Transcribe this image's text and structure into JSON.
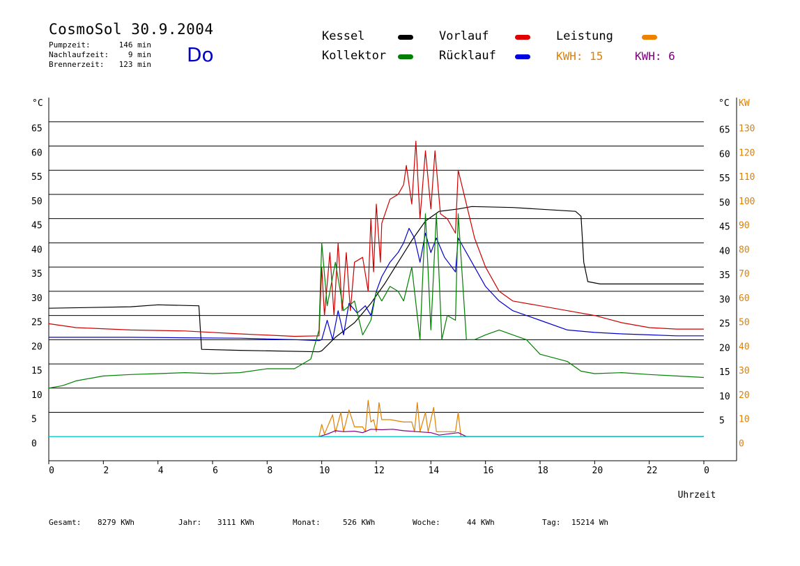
{
  "header": {
    "title": "CosmoSol 30.9.2004",
    "weekday": "Do",
    "stats": [
      {
        "label": "Pumpzeit:",
        "value": "146 min"
      },
      {
        "label": "Nachlaufzeit:",
        "value": "9 min"
      },
      {
        "label": "Brennerzeit:",
        "value": "123 min"
      }
    ]
  },
  "legend": {
    "items": [
      {
        "label": "Kessel",
        "color": "#000000"
      },
      {
        "label": "Vorlauf",
        "color": "#e00000"
      },
      {
        "label": "Leistung",
        "color": "#f08000"
      },
      {
        "label": "Kollektor",
        "color": "#008000"
      },
      {
        "label": "Rücklauf",
        "color": "#0000e0"
      }
    ],
    "kwh": [
      {
        "label": "KWH: 15",
        "color": "#e08000"
      },
      {
        "label": "KWH: 6",
        "color": "#800080"
      }
    ]
  },
  "footer": [
    {
      "label": "Gesamt:",
      "value": "8279 KWh"
    },
    {
      "label": "Jahr:",
      "value": "3111 KWh"
    },
    {
      "label": "Monat:",
      "value": "526 KWh"
    },
    {
      "label": "Woche:",
      "value": "44 KWh"
    },
    {
      "label": "Tag:",
      "value": "15214 Wh"
    }
  ],
  "chart_data": {
    "type": "line",
    "xlabel": "Uhrzeit",
    "xlim": [
      0,
      24
    ],
    "x_ticks": [
      "0",
      "2",
      "4",
      "6",
      "8",
      "10",
      "12",
      "14",
      "16",
      "18",
      "20",
      "22",
      "0"
    ],
    "ylim": [
      -5,
      70
    ],
    "y_left_unit": "°C",
    "y_left_ticks": [
      "0",
      "5",
      "10",
      "15",
      "20",
      "25",
      "30",
      "35",
      "40",
      "45",
      "50",
      "55",
      "60",
      "65"
    ],
    "y_right_unit": "°C",
    "y_right_ticks": [
      "5",
      "10",
      "15",
      "20",
      "25",
      "30",
      "35",
      "40",
      "45",
      "50",
      "55",
      "60",
      "65"
    ],
    "y_right2_unit": "KW",
    "y_right2_ticks": [
      "0",
      "10",
      "20",
      "30",
      "40",
      "50",
      "60",
      "70",
      "80",
      "90",
      "100",
      "110",
      "120",
      "130"
    ],
    "grid": true,
    "series": [
      {
        "name": "Kessel",
        "color": "#000000",
        "points": [
          [
            0,
            26.5
          ],
          [
            3,
            26.8
          ],
          [
            4,
            27.2
          ],
          [
            5.5,
            27.0
          ],
          [
            5.6,
            18.0
          ],
          [
            7,
            17.8
          ],
          [
            9.9,
            17.5
          ],
          [
            10,
            17.7
          ],
          [
            10.5,
            20.5
          ],
          [
            11.2,
            23.5
          ],
          [
            11.8,
            27.5
          ],
          [
            12.3,
            31.5
          ],
          [
            12.8,
            36.0
          ],
          [
            13.3,
            40.5
          ],
          [
            13.8,
            44.5
          ],
          [
            14.3,
            46.5
          ],
          [
            15,
            47
          ],
          [
            15.5,
            47.5
          ],
          [
            17,
            47.3
          ],
          [
            19.3,
            46.5
          ],
          [
            19.5,
            45.5
          ],
          [
            19.6,
            36
          ],
          [
            19.75,
            32
          ],
          [
            20.2,
            31.5
          ],
          [
            24,
            31.5
          ]
        ]
      },
      {
        "name": "Vorlauf",
        "color": "#cc0000",
        "points": [
          [
            0,
            23.3
          ],
          [
            1,
            22.5
          ],
          [
            3,
            22.0
          ],
          [
            5,
            21.8
          ],
          [
            7,
            21.2
          ],
          [
            9,
            20.7
          ],
          [
            9.9,
            20.8
          ],
          [
            10,
            35
          ],
          [
            10.1,
            25
          ],
          [
            10.3,
            38
          ],
          [
            10.45,
            25
          ],
          [
            10.6,
            40
          ],
          [
            10.75,
            26
          ],
          [
            10.9,
            38
          ],
          [
            11.05,
            26
          ],
          [
            11.2,
            36
          ],
          [
            11.5,
            37
          ],
          [
            11.7,
            30
          ],
          [
            11.8,
            45
          ],
          [
            11.9,
            34
          ],
          [
            12.0,
            48
          ],
          [
            12.15,
            36
          ],
          [
            12.2,
            44
          ],
          [
            12.5,
            49
          ],
          [
            12.8,
            50
          ],
          [
            13.0,
            52
          ],
          [
            13.1,
            56
          ],
          [
            13.3,
            48
          ],
          [
            13.45,
            61
          ],
          [
            13.6,
            45
          ],
          [
            13.8,
            59
          ],
          [
            14.0,
            47
          ],
          [
            14.15,
            59
          ],
          [
            14.35,
            46
          ],
          [
            14.6,
            45
          ],
          [
            14.9,
            42
          ],
          [
            15.0,
            55
          ],
          [
            15.3,
            48
          ],
          [
            15.6,
            41
          ],
          [
            16,
            35
          ],
          [
            16.5,
            30
          ],
          [
            17,
            28
          ],
          [
            18,
            27
          ],
          [
            19,
            26
          ],
          [
            20,
            25
          ],
          [
            21,
            23.5
          ],
          [
            22,
            22.5
          ],
          [
            23,
            22.2
          ],
          [
            24,
            22.2
          ]
        ]
      },
      {
        "name": "Rücklauf",
        "color": "#0000cc",
        "points": [
          [
            0,
            20.5
          ],
          [
            1,
            20.5
          ],
          [
            3,
            20.5
          ],
          [
            5,
            20.4
          ],
          [
            7,
            20.3
          ],
          [
            9,
            20.0
          ],
          [
            9.9,
            19.8
          ],
          [
            10,
            20.0
          ],
          [
            10.2,
            24
          ],
          [
            10.4,
            20
          ],
          [
            10.6,
            26
          ],
          [
            10.8,
            21
          ],
          [
            11.0,
            27.5
          ],
          [
            11.3,
            25.5
          ],
          [
            11.6,
            27
          ],
          [
            11.8,
            25
          ],
          [
            12.0,
            30
          ],
          [
            12.2,
            33
          ],
          [
            12.5,
            36
          ],
          [
            12.8,
            38
          ],
          [
            13.0,
            40
          ],
          [
            13.2,
            43
          ],
          [
            13.4,
            41
          ],
          [
            13.6,
            36
          ],
          [
            13.8,
            42
          ],
          [
            14.0,
            38
          ],
          [
            14.2,
            41
          ],
          [
            14.5,
            37
          ],
          [
            14.9,
            34
          ],
          [
            15.0,
            41
          ],
          [
            15.5,
            36
          ],
          [
            16,
            31
          ],
          [
            16.5,
            28
          ],
          [
            17,
            26
          ],
          [
            18,
            24
          ],
          [
            19,
            22
          ],
          [
            20,
            21.5
          ],
          [
            21,
            21.2
          ],
          [
            22,
            21.0
          ],
          [
            23,
            20.8
          ],
          [
            24,
            20.8
          ]
        ]
      },
      {
        "name": "Kollektor",
        "color": "#008000",
        "points": [
          [
            0,
            10
          ],
          [
            0.5,
            10.5
          ],
          [
            1,
            11.5
          ],
          [
            2,
            12.5
          ],
          [
            3,
            12.8
          ],
          [
            4,
            13
          ],
          [
            5,
            13.2
          ],
          [
            6,
            13
          ],
          [
            7,
            13.2
          ],
          [
            8,
            14
          ],
          [
            9,
            14
          ],
          [
            9.6,
            16
          ],
          [
            9.9,
            22
          ],
          [
            10.0,
            40
          ],
          [
            10.2,
            27
          ],
          [
            10.5,
            36
          ],
          [
            10.8,
            26
          ],
          [
            11.2,
            28
          ],
          [
            11.5,
            21
          ],
          [
            11.8,
            24
          ],
          [
            12.0,
            30
          ],
          [
            12.2,
            28
          ],
          [
            12.5,
            31
          ],
          [
            12.8,
            30
          ],
          [
            13.0,
            28
          ],
          [
            13.3,
            35
          ],
          [
            13.6,
            20
          ],
          [
            13.8,
            46
          ],
          [
            14.0,
            22
          ],
          [
            14.2,
            46
          ],
          [
            14.4,
            20
          ],
          [
            14.6,
            25
          ],
          [
            14.9,
            24
          ],
          [
            15.0,
            46
          ],
          [
            15.3,
            20
          ],
          [
            15.6,
            20
          ],
          [
            16,
            21
          ],
          [
            16.5,
            22
          ],
          [
            17,
            21
          ],
          [
            17.5,
            20
          ],
          [
            18,
            17
          ],
          [
            19,
            15.5
          ],
          [
            19.5,
            13.5
          ],
          [
            20,
            13
          ],
          [
            21,
            13.2
          ],
          [
            22,
            12.8
          ],
          [
            23,
            12.5
          ],
          [
            24,
            12.2
          ]
        ]
      },
      {
        "name": "Leistung",
        "color": "#e08000",
        "points": [
          [
            9.9,
            0
          ],
          [
            10.0,
            2.5
          ],
          [
            10.1,
            0.5
          ],
          [
            10.4,
            4.5
          ],
          [
            10.5,
            0.8
          ],
          [
            10.7,
            5
          ],
          [
            10.8,
            1
          ],
          [
            11.0,
            5.5
          ],
          [
            11.2,
            2
          ],
          [
            11.5,
            2
          ],
          [
            11.6,
            1
          ],
          [
            11.7,
            7.5
          ],
          [
            11.8,
            3
          ],
          [
            11.9,
            3.5
          ],
          [
            12.0,
            1
          ],
          [
            12.1,
            7
          ],
          [
            12.2,
            3.5
          ],
          [
            12.5,
            3.5
          ],
          [
            13.0,
            3
          ],
          [
            13.3,
            3
          ],
          [
            13.4,
            1
          ],
          [
            13.5,
            7
          ],
          [
            13.6,
            1
          ],
          [
            13.8,
            5
          ],
          [
            13.9,
            1
          ],
          [
            14.1,
            6
          ],
          [
            14.2,
            1
          ],
          [
            14.9,
            1
          ],
          [
            15.0,
            5
          ],
          [
            15.1,
            0
          ],
          [
            24,
            0
          ]
        ]
      },
      {
        "name": "KWH",
        "color": "#800080",
        "points": [
          [
            9.9,
            0
          ],
          [
            10.2,
            0.5
          ],
          [
            10.5,
            1.2
          ],
          [
            10.8,
            1.0
          ],
          [
            11.2,
            1.1
          ],
          [
            11.5,
            0.8
          ],
          [
            11.8,
            1.5
          ],
          [
            12.2,
            1.4
          ],
          [
            12.6,
            1.5
          ],
          [
            13.0,
            1.2
          ],
          [
            13.5,
            1.0
          ],
          [
            14.0,
            0.8
          ],
          [
            14.3,
            0.3
          ],
          [
            15.0,
            0.8
          ],
          [
            15.3,
            0
          ],
          [
            24,
            0
          ]
        ]
      },
      {
        "name": "Pumpe",
        "color": "#00cccc",
        "points": [
          [
            0,
            0
          ],
          [
            24,
            0
          ]
        ]
      }
    ]
  }
}
